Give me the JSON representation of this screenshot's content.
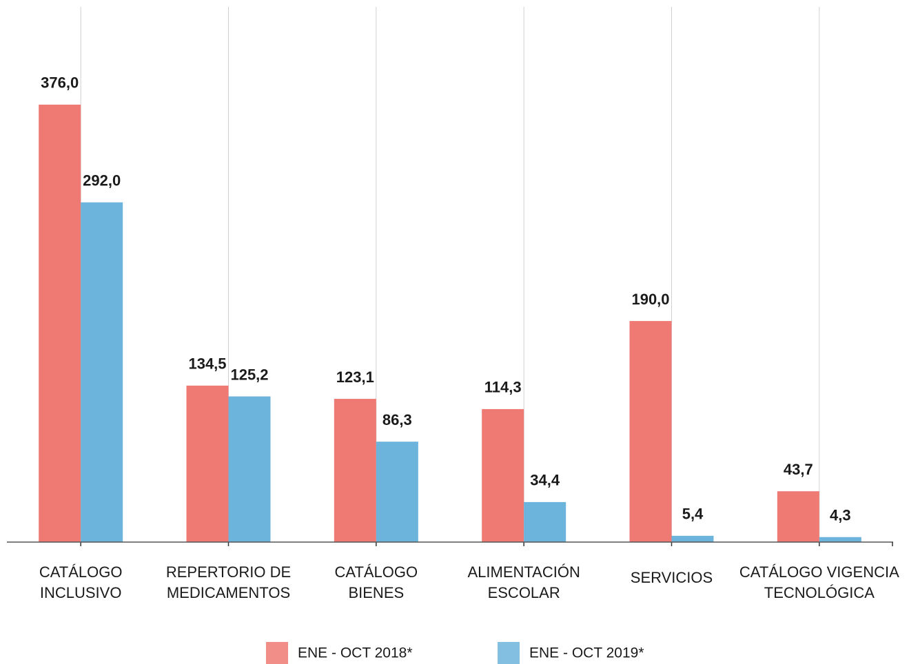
{
  "chart_data": {
    "type": "bar",
    "categories": [
      [
        "CATÁLOGO",
        "INCLUSIVO"
      ],
      [
        "REPERTORIO DE",
        "MEDICAMENTOS"
      ],
      [
        "CATÁLOGO",
        "BIENES"
      ],
      [
        "ALIMENTACIÓN",
        "ESCOLAR"
      ],
      [
        "SERVICIOS"
      ],
      [
        "CATÁLOGO VIGENCIA",
        "TECNOLÓGICA"
      ]
    ],
    "series": [
      {
        "name": "ENE - OCT 2018*",
        "color": "#ef7a73",
        "values": [
          376.0,
          134.5,
          123.1,
          114.3,
          190.0,
          43.7
        ],
        "value_labels": [
          "376,0",
          "134,5",
          "123,1",
          "114,3",
          "190,0",
          "43,7"
        ]
      },
      {
        "name": "ENE - OCT 2019*",
        "color": "#6cb4dc",
        "values": [
          292.0,
          125.2,
          86.3,
          34.4,
          5.4,
          4.3
        ],
        "value_labels": [
          "292,0",
          "125,2",
          "86,3",
          "34,4",
          "5,4",
          "4,3"
        ]
      }
    ],
    "ylim": [
      0,
      460
    ]
  }
}
